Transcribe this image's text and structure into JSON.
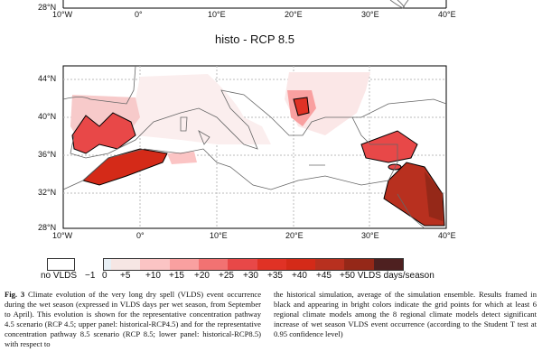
{
  "top_panel": {
    "lat_label": "28°N",
    "lon_labels": [
      "10°W",
      "0°",
      "10°E",
      "20°E",
      "30°E",
      "40°E"
    ]
  },
  "panel": {
    "title": "histo - RCP 8.5",
    "lat_labels": [
      "44°N",
      "40°N",
      "36°N",
      "32°N",
      "28°N"
    ],
    "lon_labels": [
      "10°W",
      "0°",
      "10°E",
      "20°E",
      "30°E",
      "40°E"
    ]
  },
  "legend": {
    "no_data_label": "no VLDS",
    "tick_labels": [
      "−1",
      "0",
      "+5",
      "+10",
      "+15",
      "+20",
      "+25",
      "+30",
      "+35",
      "+40",
      "+45",
      "+50 VLDS days/season"
    ],
    "colors": [
      "#e8f0f6",
      "#f6e6e4",
      "#fbc4c4",
      "#f9a0a0",
      "#f27272",
      "#e84848",
      "#e03225",
      "#d42a18",
      "#b8301f",
      "#952818",
      "#4e2020"
    ]
  },
  "caption": {
    "label": "Fig. 3",
    "left": "Climate evolution of the very long dry spell (VLDS) event occurrence during the wet season (expressed in VLDS days per wet season, from September to April). This evolution is shown for the representative concentration pathway 4.5 scenario (RCP 4.5; upper panel: historical-RCP4.5) and for the representative concentration pathway 8.5 scenario (RCP 8.5; lower panel: historical-RCP8.5) with respect to",
    "right": "the historical simulation, average of the simulation ensemble. Results framed in black and appearing in bright colors indicate the grid points for which at least 6 regional climate models among the 8 regional climate models detect significant increase of wet season VLDS event occurrence (according to the Student T test at 0.95 confidence level)"
  }
}
